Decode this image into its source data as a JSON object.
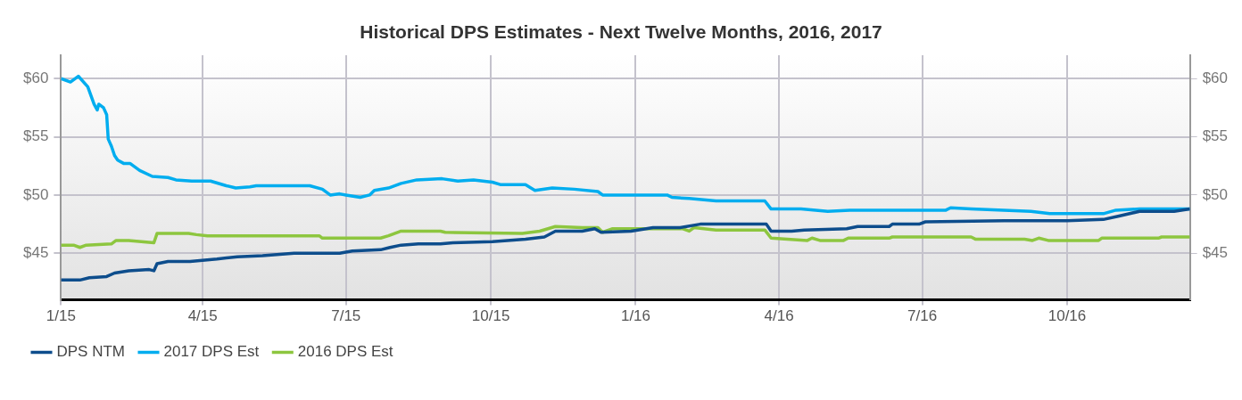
{
  "chart_data": {
    "type": "line",
    "title": "Historical DPS Estimates - Next Twelve Months, 2016, 2017",
    "xlim": [
      "2015-01-01",
      "2016-12-18"
    ],
    "xticks": [
      {
        "value": "2015-01-01",
        "label": "1/15"
      },
      {
        "value": "2015-04-01",
        "label": "4/15"
      },
      {
        "value": "2015-07-01",
        "label": "7/15"
      },
      {
        "value": "2015-10-01",
        "label": "10/15"
      },
      {
        "value": "2016-01-01",
        "label": "1/16"
      },
      {
        "value": "2016-04-01",
        "label": "4/16"
      },
      {
        "value": "2016-07-01",
        "label": "7/16"
      },
      {
        "value": "2016-10-01",
        "label": "10/16"
      }
    ],
    "ylim": [
      41,
      62
    ],
    "yticks": [
      {
        "value": 45,
        "label": "$45"
      },
      {
        "value": 50,
        "label": "$50"
      },
      {
        "value": 55,
        "label": "$55"
      },
      {
        "value": 60,
        "label": "$60"
      }
    ],
    "y2lim": [
      41,
      62
    ],
    "y2ticks": [
      {
        "value": 45,
        "label": "$45"
      },
      {
        "value": 50,
        "label": "$50"
      },
      {
        "value": 55,
        "label": "$55"
      },
      {
        "value": 60,
        "label": "$60"
      }
    ],
    "grid": true,
    "legend": "bottom left",
    "marker": "none",
    "line_style": "solid",
    "series": [
      {
        "name": "DPS NTM",
        "color": "#0d4d8c",
        "x": [
          "2015-01-01",
          "2015-01-13",
          "2015-01-19",
          "2015-01-30",
          "2015-02-04",
          "2015-02-13",
          "2015-02-26",
          "2015-03-01",
          "2015-03-03",
          "2015-03-10",
          "2015-03-24",
          "2015-04-10",
          "2015-04-23",
          "2015-05-09",
          "2015-05-29",
          "2015-06-27",
          "2015-07-05",
          "2015-07-23",
          "2015-07-29",
          "2015-08-05",
          "2015-08-16",
          "2015-08-30",
          "2015-09-07",
          "2015-10-02",
          "2015-10-23",
          "2015-11-04",
          "2015-11-11",
          "2015-11-28",
          "2015-12-06",
          "2015-12-10",
          "2015-12-29",
          "2016-01-12",
          "2016-01-29",
          "2016-02-11",
          "2016-03-24",
          "2016-03-27",
          "2016-04-09",
          "2016-04-17",
          "2016-05-14",
          "2016-05-21",
          "2016-06-10",
          "2016-06-12",
          "2016-06-29",
          "2016-07-03",
          "2016-08-22",
          "2016-10-01",
          "2016-10-24",
          "2016-11-03",
          "2016-11-16",
          "2016-12-08",
          "2016-12-18"
        ],
        "values": [
          42.7,
          42.7,
          42.9,
          43.0,
          43.3,
          43.5,
          43.6,
          43.5,
          44.1,
          44.3,
          44.3,
          44.5,
          44.7,
          44.8,
          45.0,
          45.0,
          45.2,
          45.3,
          45.5,
          45.7,
          45.8,
          45.8,
          45.9,
          46.0,
          46.2,
          46.4,
          46.9,
          46.9,
          47.1,
          46.8,
          46.9,
          47.2,
          47.2,
          47.5,
          47.5,
          46.9,
          46.9,
          47.0,
          47.1,
          47.3,
          47.3,
          47.5,
          47.5,
          47.7,
          47.8,
          47.8,
          47.9,
          48.2,
          48.6,
          48.6,
          48.8
        ]
      },
      {
        "name": "2017 DPS Est",
        "color": "#00adef",
        "x": [
          "2015-01-01",
          "2015-01-07",
          "2015-01-12",
          "2015-01-18",
          "2015-01-22",
          "2015-01-24",
          "2015-01-25",
          "2015-01-28",
          "2015-01-30",
          "2015-01-31",
          "2015-02-02",
          "2015-02-04",
          "2015-02-06",
          "2015-02-10",
          "2015-02-14",
          "2015-02-20",
          "2015-02-28",
          "2015-03-10",
          "2015-03-15",
          "2015-03-25",
          "2015-04-06",
          "2015-04-16",
          "2015-04-22",
          "2015-05-01",
          "2015-05-05",
          "2015-06-08",
          "2015-06-16",
          "2015-06-21",
          "2015-06-27",
          "2015-07-01",
          "2015-07-10",
          "2015-07-16",
          "2015-07-19",
          "2015-07-28",
          "2015-08-05",
          "2015-08-15",
          "2015-08-31",
          "2015-09-10",
          "2015-09-20",
          "2015-10-02",
          "2015-10-07",
          "2015-10-23",
          "2015-10-29",
          "2015-11-09",
          "2015-11-23",
          "2015-12-08",
          "2015-12-11",
          "2016-01-21",
          "2016-01-24",
          "2016-02-04",
          "2016-02-21",
          "2016-03-23",
          "2016-03-27",
          "2016-04-15",
          "2016-05-02",
          "2016-05-16",
          "2016-07-16",
          "2016-07-19",
          "2016-08-01",
          "2016-09-08",
          "2016-09-20",
          "2016-10-24",
          "2016-11-01",
          "2016-11-16",
          "2016-12-18"
        ],
        "values": [
          60.0,
          59.7,
          60.2,
          59.3,
          57.8,
          57.3,
          57.8,
          57.5,
          56.9,
          54.8,
          54.2,
          53.4,
          53.0,
          52.7,
          52.7,
          52.1,
          51.6,
          51.5,
          51.3,
          51.2,
          51.2,
          50.8,
          50.6,
          50.7,
          50.8,
          50.8,
          50.5,
          50.0,
          50.1,
          50.0,
          49.8,
          50.0,
          50.4,
          50.6,
          51.0,
          51.3,
          51.4,
          51.2,
          51.3,
          51.1,
          50.9,
          50.9,
          50.4,
          50.6,
          50.5,
          50.3,
          50.0,
          50.0,
          49.8,
          49.7,
          49.5,
          49.5,
          48.8,
          48.8,
          48.6,
          48.7,
          48.7,
          48.9,
          48.8,
          48.6,
          48.4,
          48.4,
          48.7,
          48.8,
          48.8
        ]
      },
      {
        "name": "2016 DPS Est",
        "color": "#8dc63f",
        "x": [
          "2015-01-01",
          "2015-01-09",
          "2015-01-13",
          "2015-01-17",
          "2015-02-02",
          "2015-02-05",
          "2015-02-13",
          "2015-02-21",
          "2015-03-01",
          "2015-03-03",
          "2015-03-23",
          "2015-03-28",
          "2015-04-04",
          "2015-06-14",
          "2015-06-16",
          "2015-07-23",
          "2015-07-28",
          "2015-08-05",
          "2015-08-30",
          "2015-09-02",
          "2015-10-21",
          "2015-11-01",
          "2015-11-11",
          "2015-11-28",
          "2015-12-08",
          "2015-12-11",
          "2015-12-17",
          "2016-01-31",
          "2016-02-04",
          "2016-02-07",
          "2016-02-21",
          "2016-03-23",
          "2016-03-27",
          "2016-04-19",
          "2016-04-22",
          "2016-04-27",
          "2016-05-12",
          "2016-05-15",
          "2016-06-10",
          "2016-06-12",
          "2016-08-01",
          "2016-08-04",
          "2016-09-04",
          "2016-09-09",
          "2016-09-13",
          "2016-09-19",
          "2016-10-21",
          "2016-10-23",
          "2016-11-28",
          "2016-11-30",
          "2016-12-18"
        ],
        "values": [
          45.7,
          45.7,
          45.5,
          45.7,
          45.8,
          46.1,
          46.1,
          46.0,
          45.9,
          46.7,
          46.7,
          46.6,
          46.5,
          46.5,
          46.3,
          46.3,
          46.5,
          46.9,
          46.9,
          46.8,
          46.7,
          46.9,
          47.3,
          47.2,
          47.2,
          46.8,
          47.1,
          47.1,
          46.9,
          47.2,
          47.0,
          47.0,
          46.3,
          46.1,
          46.3,
          46.1,
          46.1,
          46.3,
          46.3,
          46.4,
          46.4,
          46.2,
          46.2,
          46.1,
          46.3,
          46.1,
          46.1,
          46.3,
          46.3,
          46.4,
          46.4
        ]
      }
    ]
  }
}
